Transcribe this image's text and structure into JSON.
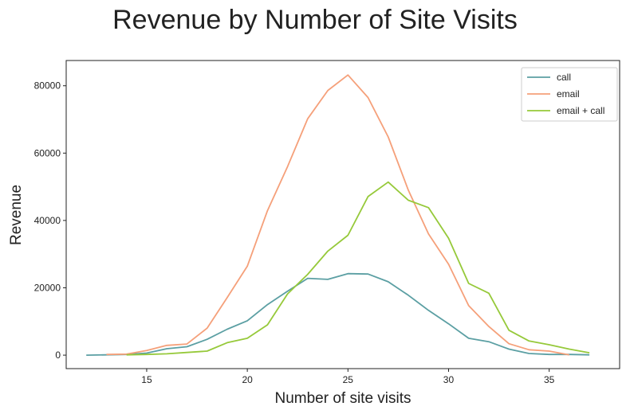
{
  "chart_data": {
    "type": "line",
    "title": "Revenue by Number of Site Visits",
    "xlabel": "Number of site visits",
    "ylabel": "Revenue",
    "xlim": [
      11,
      38.5
    ],
    "ylim": [
      -4000,
      87500
    ],
    "xticks": [
      15,
      20,
      25,
      30,
      35
    ],
    "yticks": [
      0,
      20000,
      40000,
      60000,
      80000
    ],
    "grid": false,
    "legend_position": "top-right",
    "series": [
      {
        "name": "call",
        "color": "#5b9fa3",
        "x": [
          12,
          13,
          14,
          15,
          16,
          17,
          18,
          19,
          20,
          21,
          22,
          23,
          24,
          25,
          26,
          27,
          28,
          29,
          30,
          31,
          32,
          33,
          34,
          35,
          36,
          37
        ],
        "y": [
          0,
          100,
          200,
          600,
          1900,
          2500,
          4700,
          7700,
          10200,
          15000,
          19000,
          22800,
          22500,
          24200,
          24100,
          21800,
          17800,
          13300,
          9300,
          5000,
          4000,
          1800,
          500,
          200,
          200,
          100
        ]
      },
      {
        "name": "email",
        "color": "#f5a07a",
        "x": [
          13,
          14,
          15,
          16,
          17,
          18,
          19,
          20,
          21,
          22,
          23,
          24,
          25,
          26,
          27,
          28,
          29,
          30,
          31,
          32,
          33,
          34,
          35,
          36
        ],
        "y": [
          200,
          300,
          1400,
          2900,
          3300,
          8000,
          17100,
          26400,
          42900,
          56000,
          70200,
          78600,
          83200,
          76500,
          64800,
          49000,
          36000,
          27000,
          14700,
          8500,
          3400,
          1600,
          1200,
          100
        ]
      },
      {
        "name": "email + call",
        "color": "#96c93a",
        "x": [
          14,
          15,
          16,
          17,
          18,
          19,
          20,
          21,
          22,
          23,
          24,
          25,
          26,
          27,
          28,
          29,
          30,
          31,
          32,
          33,
          34,
          35,
          36,
          37
        ],
        "y": [
          100,
          200,
          400,
          800,
          1200,
          3700,
          5000,
          9000,
          18200,
          24000,
          30900,
          35600,
          47100,
          51400,
          46000,
          43800,
          34700,
          21300,
          18400,
          7400,
          4200,
          3100,
          1800,
          700
        ]
      }
    ]
  }
}
